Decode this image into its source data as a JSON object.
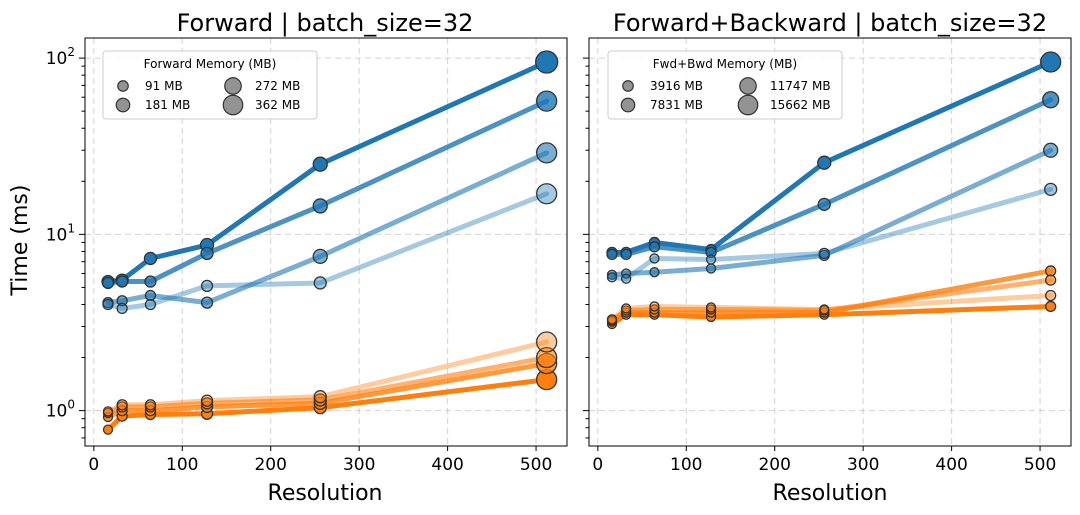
{
  "chart_data": [
    {
      "type": "line",
      "title": "Forward | batch_size=32",
      "xlabel": "Resolution",
      "ylabel": "Time (ms)",
      "yscale": "log",
      "xlim": [
        -10,
        535
      ],
      "ylim": [
        0.63,
        130
      ],
      "x_ticks": [
        0,
        100,
        200,
        300,
        400,
        500
      ],
      "y_ticks": [
        {
          "value": 1,
          "base": "10",
          "exp": "0"
        },
        {
          "value": 10,
          "base": "10",
          "exp": "1"
        },
        {
          "value": 100,
          "base": "10",
          "exp": "2"
        }
      ],
      "x": [
        16,
        32,
        64,
        128,
        256,
        512
      ],
      "legend": {
        "title": "Forward Memory (MB)",
        "entries": [
          {
            "label": "91 MB",
            "size": 7
          },
          {
            "label": "181 MB",
            "size": 9
          },
          {
            "label": "272 MB",
            "size": 11
          },
          {
            "label": "362 MB",
            "size": 13
          }
        ]
      },
      "series": [
        {
          "color": "#1f77b4",
          "opacity": 1.0,
          "values": [
            5.4,
            5.5,
            7.3,
            8.7,
            25,
            95
          ],
          "sizes": [
            6,
            6,
            6,
            6.5,
            7,
            11
          ]
        },
        {
          "color": "#1f77b4",
          "opacity": 0.8,
          "values": [
            5.3,
            5.4,
            5.4,
            7.8,
            14.5,
            57
          ],
          "sizes": [
            5.5,
            5.5,
            5.5,
            6,
            7,
            10
          ]
        },
        {
          "color": "#1f77b4",
          "opacity": 0.6,
          "values": [
            4.1,
            4.2,
            4.5,
            4.1,
            7.5,
            29
          ],
          "sizes": [
            5,
            5,
            5,
            5.5,
            7,
            10
          ]
        },
        {
          "color": "#1f77b4",
          "opacity": 0.4,
          "values": [
            4.0,
            3.8,
            4.0,
            5.1,
            5.3,
            17
          ],
          "sizes": [
            5,
            5,
            5,
            5.5,
            6,
            10
          ]
        },
        {
          "color": "#ff7f0e",
          "opacity": 1.0,
          "values": [
            0.78,
            0.93,
            0.95,
            0.96,
            1.04,
            1.5
          ],
          "sizes": [
            4.5,
            5,
            5,
            5.5,
            6,
            10
          ]
        },
        {
          "color": "#ff7f0e",
          "opacity": 0.8,
          "values": [
            0.92,
            1.0,
            1.0,
            1.05,
            1.1,
            1.85
          ],
          "sizes": [
            4.5,
            5,
            5,
            5.5,
            6,
            10
          ]
        },
        {
          "color": "#ff7f0e",
          "opacity": 0.6,
          "values": [
            0.97,
            1.05,
            1.05,
            1.1,
            1.15,
            2.0
          ],
          "sizes": [
            4.5,
            5,
            5,
            5.5,
            6,
            10
          ]
        },
        {
          "color": "#ff7f0e",
          "opacity": 0.4,
          "values": [
            0.99,
            1.08,
            1.08,
            1.14,
            1.2,
            2.45
          ],
          "sizes": [
            4.5,
            5,
            5,
            5.5,
            6,
            10
          ]
        }
      ]
    },
    {
      "type": "line",
      "title": "Forward+Backward | batch_size=32",
      "xlabel": "Resolution",
      "ylabel": "",
      "yscale": "log",
      "xlim": [
        -10,
        535
      ],
      "ylim": [
        0.63,
        130
      ],
      "x_ticks": [
        0,
        100,
        200,
        300,
        400,
        500
      ],
      "y_ticks": [
        {
          "value": 1,
          "base": "",
          "exp": ""
        },
        {
          "value": 10,
          "base": "",
          "exp": ""
        },
        {
          "value": 100,
          "base": "",
          "exp": ""
        }
      ],
      "x": [
        16,
        32,
        64,
        128,
        256,
        512
      ],
      "legend": {
        "title": "Fwd+Bwd Memory (MB)",
        "entries": [
          {
            "label": "3916 MB",
            "size": 7
          },
          {
            "label": "7831 MB",
            "size": 9
          },
          {
            "label": "11747 MB",
            "size": 11
          },
          {
            "label": "15662 MB",
            "size": 13
          }
        ]
      },
      "series": [
        {
          "color": "#1f77b4",
          "opacity": 1.0,
          "values": [
            7.9,
            7.9,
            9.0,
            8.2,
            25.5,
            95
          ],
          "sizes": [
            5,
            5,
            5,
            5,
            6.5,
            10
          ]
        },
        {
          "color": "#1f77b4",
          "opacity": 0.8,
          "values": [
            7.7,
            7.7,
            8.5,
            7.9,
            14.8,
            58
          ],
          "sizes": [
            5,
            5,
            5,
            5,
            6,
            8
          ]
        },
        {
          "color": "#1f77b4",
          "opacity": 0.6,
          "values": [
            5.9,
            6.0,
            6.1,
            6.4,
            7.6,
            30
          ],
          "sizes": [
            4.5,
            4.5,
            4.5,
            4.5,
            5,
            7
          ]
        },
        {
          "color": "#1f77b4",
          "opacity": 0.4,
          "values": [
            5.7,
            5.6,
            7.3,
            7.2,
            7.8,
            18
          ],
          "sizes": [
            4.5,
            4.5,
            4.5,
            4.5,
            5,
            6
          ]
        },
        {
          "color": "#ff7f0e",
          "opacity": 1.0,
          "values": [
            3.1,
            3.5,
            3.5,
            3.4,
            3.5,
            3.9
          ],
          "sizes": [
            4.5,
            4.5,
            4.5,
            4.5,
            4.5,
            5
          ]
        },
        {
          "color": "#ff7f0e",
          "opacity": 0.8,
          "values": [
            3.2,
            3.6,
            3.6,
            3.6,
            3.6,
            6.2
          ],
          "sizes": [
            4.5,
            4.5,
            4.5,
            4.5,
            4.5,
            5
          ]
        },
        {
          "color": "#ff7f0e",
          "opacity": 0.6,
          "values": [
            3.25,
            3.7,
            3.75,
            3.75,
            3.7,
            5.5
          ],
          "sizes": [
            4.5,
            4.5,
            4.5,
            4.5,
            4.5,
            5
          ]
        },
        {
          "color": "#ff7f0e",
          "opacity": 0.4,
          "values": [
            3.3,
            3.8,
            3.9,
            3.85,
            3.75,
            4.5
          ],
          "sizes": [
            4.5,
            4.5,
            4.5,
            4.5,
            4.5,
            5
          ]
        }
      ]
    }
  ]
}
